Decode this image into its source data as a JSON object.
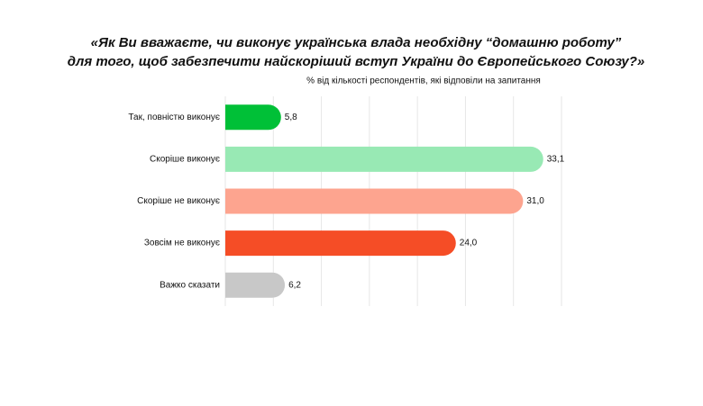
{
  "chart_data": {
    "type": "hbar",
    "title": [
      "«Як Ви вважаєте, чи виконує українська влада необхідну “домашню роботу”",
      "для того, щоб забезпечити найскоріший вступ України до Європейського Союзу?»"
    ],
    "subtitle": "% від кількості респондентів, які відповіли на запитання",
    "categories": [
      "Так, повністю виконує",
      "Скоріше виконує",
      "Скоріше не виконує",
      "Зовсім не виконує",
      "Важко сказати"
    ],
    "values": [
      5.8,
      33.1,
      31.0,
      24.0,
      6.2
    ],
    "value_labels": [
      "5,8",
      "33,1",
      "31,0",
      "24,0",
      "6,2"
    ],
    "colors": [
      "#00c037",
      "#98e9b4",
      "#fda48f",
      "#f54d26",
      "#c8c8c8"
    ],
    "xlim": [
      0,
      35
    ],
    "xticks": [
      0,
      5,
      10,
      15,
      20,
      25,
      30,
      35
    ],
    "grid": true
  }
}
